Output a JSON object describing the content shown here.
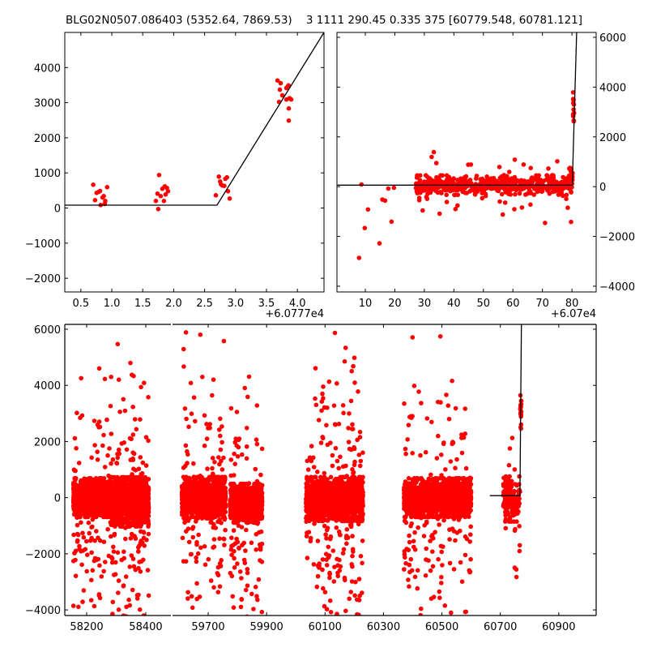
{
  "title": "BLG02N0507.086403 (5352.64, 7869.53)    3 1111 290.45 0.335 375 [60779.548, 60781.121]",
  "colors": {
    "points": "#ff0000",
    "line": "#000000",
    "axes": "#000000"
  },
  "chart_data": [
    {
      "id": "top-left",
      "type": "scatter",
      "xlim": [
        0.24,
        4.43
      ],
      "ylim": [
        -2390,
        5000
      ],
      "x_offset_label": "+6.0777e4",
      "xticks": [
        0.5,
        1.0,
        1.5,
        2.0,
        2.5,
        3.0,
        3.5,
        4.0
      ],
      "xtick_labels": [
        "0.5",
        "1.0",
        "1.5",
        "2.0",
        "2.5",
        "3.0",
        "3.5",
        "4.0"
      ],
      "yticks": [
        -2000,
        -1000,
        0,
        1000,
        2000,
        3000,
        4000
      ],
      "ytick_labels": [
        "−2000",
        "−1000",
        "0",
        "1000",
        "2000",
        "3000",
        "4000"
      ],
      "yaxis_side": "left",
      "points": [
        [
          0.7,
          664
        ],
        [
          0.73,
          224
        ],
        [
          0.755,
          432
        ],
        [
          0.79,
          462
        ],
        [
          0.81,
          485
        ],
        [
          0.82,
          86
        ],
        [
          0.85,
          300
        ],
        [
          0.87,
          340
        ],
        [
          0.895,
          200
        ],
        [
          0.886,
          116
        ],
        [
          0.925,
          594
        ],
        [
          1.764,
          941
        ],
        [
          1.738,
          409
        ],
        [
          1.712,
          201
        ],
        [
          1.751,
          -30
        ],
        [
          1.79,
          340
        ],
        [
          1.817,
          548
        ],
        [
          1.843,
          201
        ],
        [
          1.856,
          617
        ],
        [
          1.869,
          386
        ],
        [
          1.891,
          571
        ],
        [
          1.908,
          479
        ],
        [
          2.682,
          363
        ],
        [
          2.73,
          895
        ],
        [
          2.752,
          756
        ],
        [
          2.765,
          678
        ],
        [
          2.787,
          640
        ],
        [
          2.818,
          631
        ],
        [
          2.835,
          832
        ],
        [
          2.861,
          872
        ],
        [
          2.878,
          479
        ],
        [
          2.904,
          270
        ],
        [
          3.678,
          3630
        ],
        [
          3.73,
          3554
        ],
        [
          3.717,
          3369
        ],
        [
          3.757,
          3207
        ],
        [
          3.704,
          3022
        ],
        [
          3.822,
          3415
        ],
        [
          3.848,
          3468
        ],
        [
          3.857,
          3491
        ],
        [
          3.822,
          3091
        ],
        [
          3.874,
          3128
        ],
        [
          3.9,
          3091
        ],
        [
          3.861,
          2837
        ],
        [
          3.861,
          2490
        ]
      ],
      "model_line": [
        [
          0.24,
          80
        ],
        [
          2.7,
          80
        ],
        [
          4.43,
          5000
        ]
      ]
    },
    {
      "id": "top-right",
      "type": "scatter",
      "xlim": [
        0.4,
        88.2
      ],
      "ylim": [
        -4230,
        6195
      ],
      "x_offset_label": "+6.07e4",
      "xticks": [
        10,
        20,
        30,
        40,
        50,
        60,
        70,
        80
      ],
      "xtick_labels": [
        "10",
        "20",
        "30",
        "40",
        "50",
        "60",
        "70",
        "80"
      ],
      "yticks": [
        -4000,
        -2000,
        0,
        2000,
        4000,
        6000
      ],
      "ytick_labels": [
        "−4000",
        "−2000",
        "0",
        "2000",
        "4000",
        "6000"
      ],
      "yaxis_side": "right",
      "points": [
        [
          8.7,
          87
        ],
        [
          10.9,
          -918
        ],
        [
          9.8,
          -1663
        ],
        [
          7.9,
          -2862
        ],
        [
          14.8,
          -2280
        ],
        [
          15.8,
          -519
        ],
        [
          16.7,
          -562
        ],
        [
          17.8,
          -76
        ],
        [
          18.9,
          -1404
        ],
        [
          19.7,
          -43
        ]
      ],
      "clusters": [
        {
          "x": [
            27,
            80
          ],
          "n": 520,
          "center": 60,
          "sigma": 170,
          "outliers": 40,
          "outlier_sigma": 450,
          "seed": 11
        },
        {
          "x": [
            79,
            80.3
          ],
          "n": 40,
          "center": 350,
          "sigma": 250,
          "outliers": 0,
          "outlier_sigma": 0,
          "seed": 12
        },
        {
          "x": [
            80.4,
            80.8
          ],
          "n": 16,
          "center": 3050,
          "sigma": 320,
          "outliers": 0,
          "outlier_sigma": 0,
          "seed": 13
        }
      ],
      "model_line": [
        [
          0.4,
          60
        ],
        [
          80.1,
          60
        ],
        [
          81.6,
          6195
        ]
      ]
    },
    {
      "id": "bottom",
      "type": "scatter",
      "broken_x_axis": true,
      "segments": [
        {
          "xlim": [
            58126,
            58485
          ],
          "xticks": [
            58200,
            58400
          ],
          "xtick_labels": [
            "58200",
            "58400"
          ]
        },
        {
          "xlim": [
            59578,
            61028
          ],
          "xticks": [
            59700,
            59900,
            60100,
            60300,
            60500,
            60700,
            60900
          ],
          "xtick_labels": [
            "59700",
            "59900",
            "60100",
            "60300",
            "60500",
            "60700",
            "60900"
          ]
        }
      ],
      "ylim": [
        -4200,
        6173
      ],
      "yticks": [
        -4000,
        -2000,
        0,
        2000,
        4000,
        6000
      ],
      "ytick_labels": [
        "−4000",
        "−2000",
        "0",
        "2000",
        "4000",
        "6000"
      ],
      "clusters": [
        {
          "x": [
            58155,
            58280
          ],
          "n": 1300,
          "center": 0,
          "sigma": 300,
          "outliers": 90,
          "outlier_sigma": 1900,
          "seed": 21
        },
        {
          "x": [
            58280,
            58410
          ],
          "n": 1400,
          "center": -150,
          "sigma": 380,
          "outliers": 130,
          "outlier_sigma": 2200,
          "seed": 22
        },
        {
          "x": [
            59610,
            59760
          ],
          "n": 1200,
          "center": 0,
          "sigma": 320,
          "outliers": 110,
          "outlier_sigma": 2100,
          "seed": 23
        },
        {
          "x": [
            59775,
            59885
          ],
          "n": 1000,
          "center": -200,
          "sigma": 300,
          "outliers": 90,
          "outlier_sigma": 2100,
          "seed": 24
        },
        {
          "x": [
            60035,
            60230
          ],
          "n": 1800,
          "center": -50,
          "sigma": 340,
          "outliers": 190,
          "outlier_sigma": 2200,
          "seed": 25
        },
        {
          "x": [
            60370,
            60600
          ],
          "n": 1700,
          "center": 0,
          "sigma": 300,
          "outliers": 150,
          "outlier_sigma": 1900,
          "seed": 26
        },
        {
          "x": [
            60710,
            60768
          ],
          "n": 150,
          "center": -50,
          "sigma": 350,
          "outliers": 14,
          "outlier_sigma": 1300,
          "seed": 27
        },
        {
          "x": [
            60768,
            60772
          ],
          "n": 20,
          "center": 3050,
          "sigma": 350,
          "outliers": 0,
          "outlier_sigma": 0,
          "seed": 28
        }
      ],
      "model_line": [
        [
          60664,
          70
        ],
        [
          60767,
          70
        ],
        [
          60772,
          6173
        ]
      ]
    }
  ]
}
